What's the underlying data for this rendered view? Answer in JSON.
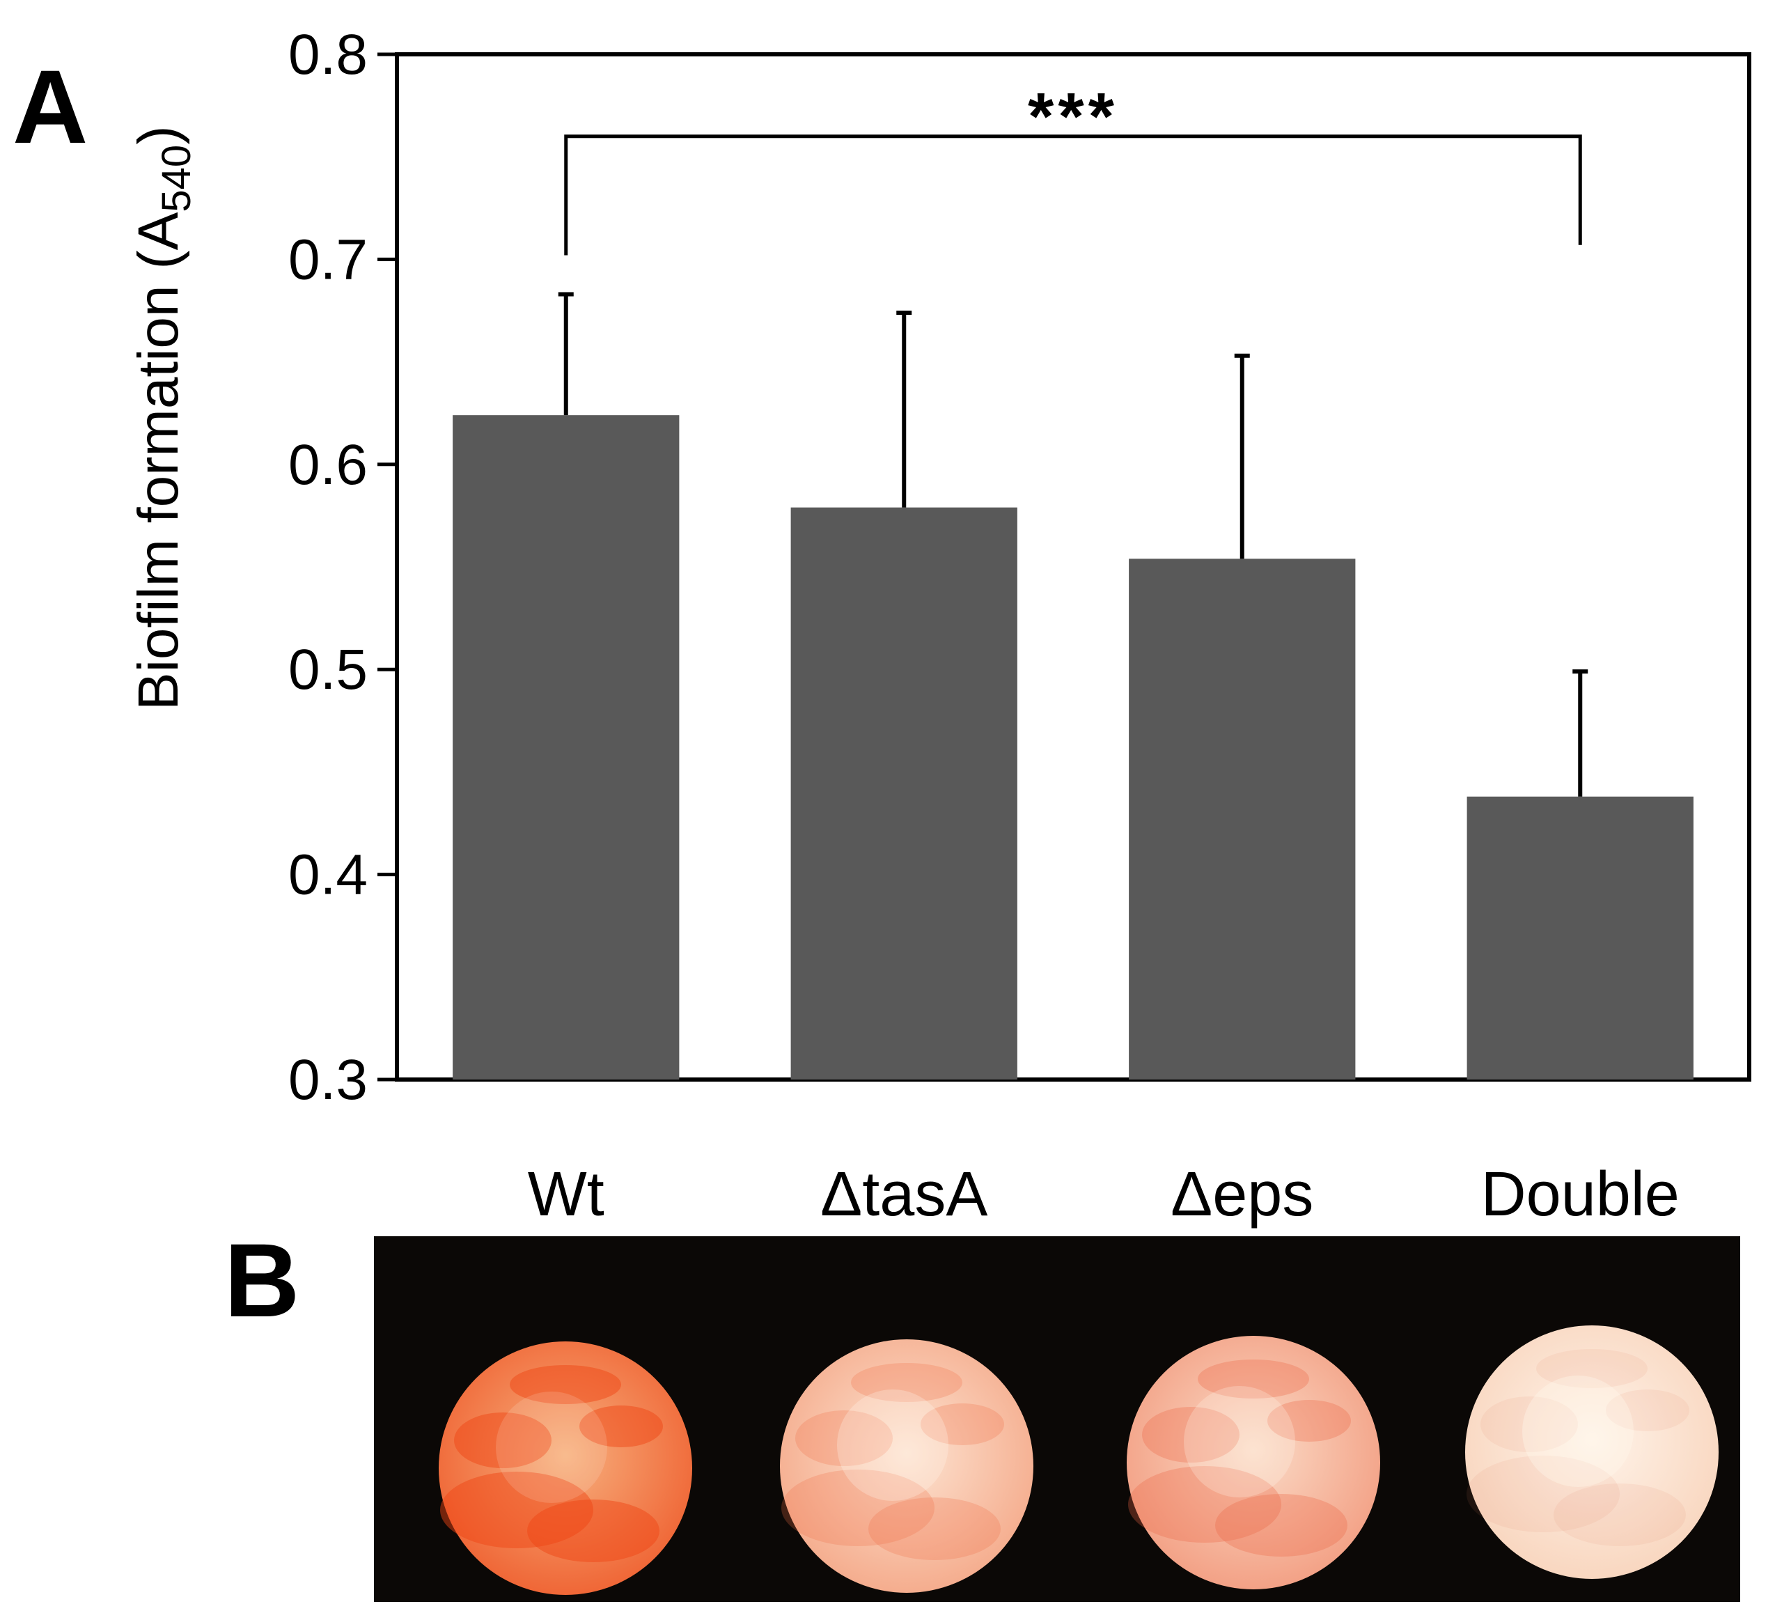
{
  "panels": {
    "a_label": "A",
    "b_label": "B"
  },
  "chart_data": {
    "type": "bar",
    "title": "",
    "xlabel": "",
    "ylabel": "Biofilm formation (A",
    "ylabel_subscript": "540",
    "ylabel_close": ")",
    "categories": [
      "Wt",
      "ΔtasA",
      "Δeps",
      "Double"
    ],
    "values": [
      0.624,
      0.579,
      0.554,
      0.438
    ],
    "errors": [
      0.059,
      0.095,
      0.099,
      0.061
    ],
    "ylim": [
      0.3,
      0.8
    ],
    "yticks": [
      "0.3",
      "0.4",
      "0.5",
      "0.6",
      "0.7",
      "0.8"
    ],
    "grid": false,
    "bar_color": "#595959",
    "significance": {
      "from": "Wt",
      "to": "Double",
      "label": "***"
    }
  },
  "photo": {
    "background_color": "#0b0806",
    "discs": [
      {
        "strain": "Wt",
        "base_color": "#f6a070",
        "stain_color": "#ee4414",
        "stain_level": 0.85
      },
      {
        "strain": "ΔtasA",
        "base_color": "#fbd8c2",
        "stain_color": "#ee6a42",
        "stain_level": 0.45
      },
      {
        "strain": "Δeps",
        "base_color": "#f9d0b8",
        "stain_color": "#ec6242",
        "stain_level": 0.55
      },
      {
        "strain": "Double",
        "base_color": "#fdebdd",
        "stain_color": "#e08060",
        "stain_level": 0.18
      }
    ]
  }
}
